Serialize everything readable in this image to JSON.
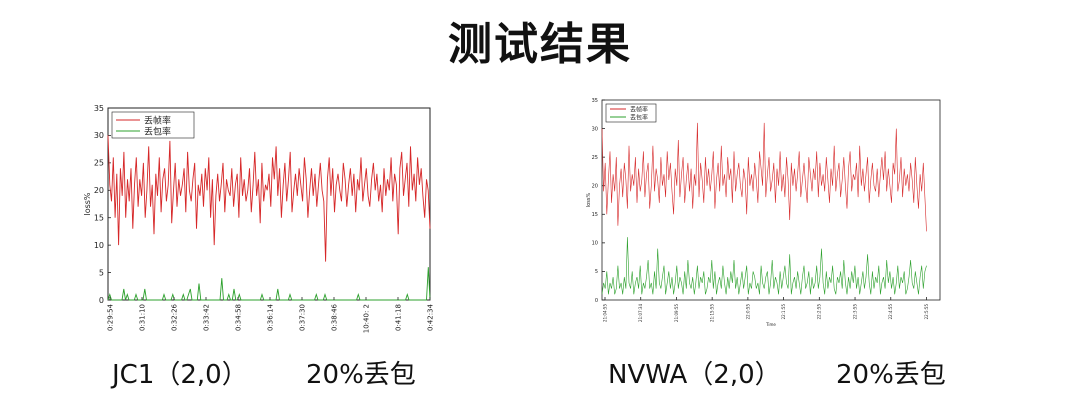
{
  "page": {
    "title": "测试结果"
  },
  "captions": {
    "left_name": "JC1（2,0）",
    "left_loss": "20%丢包",
    "right_name": "NVWA（2,0）",
    "right_loss": "20%丢包"
  },
  "colors": {
    "frame_loss": "#d62728",
    "packet_loss": "#2ca02c"
  },
  "chart_data": [
    {
      "type": "line",
      "title": "",
      "xlabel": "",
      "ylabel": "loss%",
      "ylim": [
        0,
        35
      ],
      "yticks": [
        0,
        5,
        10,
        15,
        20,
        25,
        30,
        35
      ],
      "legend_position": "top-left",
      "x_tick_labels": [
        "0:29:54",
        "0:31:10",
        "0:32:26",
        "0:33:42",
        "0:34:58",
        "0:36:14",
        "0:37:30",
        "0:38:46",
        "10:40: 2",
        "0:41:18",
        "0:42:34"
      ],
      "grid": false,
      "series": [
        {
          "name": "丢帧率",
          "color": "#d62728",
          "values": [
            30,
            21,
            18,
            26,
            15,
            23,
            10,
            24,
            19,
            27,
            15,
            22,
            18,
            24,
            13,
            21,
            26,
            17,
            22,
            19,
            25,
            15,
            20,
            28,
            17,
            21,
            12,
            23,
            19,
            26,
            16,
            22,
            24,
            18,
            21,
            29,
            14,
            20,
            25,
            17,
            22,
            19,
            21,
            24,
            16,
            27,
            20,
            18,
            22,
            25,
            13,
            21,
            19,
            23,
            17,
            24,
            20,
            26,
            15,
            22,
            10,
            19,
            23,
            18,
            21,
            25,
            16,
            22,
            20,
            19,
            24,
            17,
            21,
            23,
            15,
            26,
            19,
            22,
            18,
            20,
            24,
            16,
            21,
            27,
            19,
            22,
            14,
            25,
            18,
            21,
            20,
            23,
            17,
            26,
            22,
            28,
            19,
            24,
            15,
            21,
            25,
            18,
            22,
            27,
            16,
            20,
            23,
            19,
            24,
            21,
            18,
            26,
            22,
            15,
            20,
            24,
            19,
            23,
            17,
            21,
            25,
            20,
            18,
            7,
            22,
            26,
            19,
            24,
            16,
            21,
            23,
            20,
            18,
            25,
            22,
            17,
            21,
            24,
            19,
            23,
            16,
            22,
            20,
            26,
            18,
            21,
            24,
            19,
            17,
            22,
            25,
            20,
            23,
            18,
            21,
            16,
            24,
            19,
            22,
            20,
            26,
            18,
            23,
            21,
            12,
            24,
            27,
            19,
            22,
            25,
            17,
            28,
            20,
            23,
            18,
            26,
            21,
            24,
            19,
            15,
            22,
            20,
            13
          ]
        },
        {
          "name": "丢包率",
          "color": "#2ca02c",
          "values": [
            0,
            1,
            0,
            0,
            0,
            0,
            0,
            0,
            0,
            2,
            0,
            1,
            0,
            0,
            0,
            0,
            1,
            0,
            0,
            0,
            0,
            2,
            0,
            0,
            0,
            0,
            0,
            0,
            0,
            0,
            0,
            0,
            1,
            0,
            0,
            0,
            0,
            1,
            0,
            0,
            0,
            0,
            0,
            1,
            0,
            0,
            1,
            2,
            0,
            0,
            0,
            0,
            3,
            0,
            0,
            0,
            0,
            0,
            0,
            0,
            0,
            0,
            0,
            0,
            0,
            4,
            0,
            0,
            0,
            1,
            0,
            0,
            2,
            0,
            0,
            1,
            0,
            0,
            0,
            0,
            0,
            0,
            0,
            0,
            0,
            0,
            0,
            0,
            1,
            0,
            0,
            0,
            0,
            0,
            0,
            0,
            0,
            2,
            0,
            0,
            0,
            0,
            0,
            0,
            1,
            0,
            0,
            0,
            0,
            0,
            0,
            0,
            0,
            0,
            0,
            0,
            0,
            0,
            0,
            1,
            0,
            0,
            0,
            0,
            1,
            0,
            0,
            0,
            0,
            0,
            0,
            0,
            0,
            0,
            0,
            0,
            0,
            0,
            0,
            0,
            0,
            0,
            0,
            1,
            0,
            0,
            0,
            0,
            0,
            0,
            0,
            0,
            0,
            0,
            0,
            0,
            0,
            0,
            0,
            0,
            0,
            0,
            0,
            0,
            0,
            0,
            0,
            0,
            0,
            0,
            0,
            1,
            0,
            0,
            0,
            0,
            0,
            0,
            0,
            0,
            0,
            0,
            0,
            6,
            0
          ]
        }
      ]
    },
    {
      "type": "line",
      "title": "",
      "xlabel": "Time",
      "ylabel": "loss%",
      "ylim": [
        0,
        35
      ],
      "yticks": [
        0,
        5,
        10,
        15,
        20,
        25,
        30,
        35
      ],
      "legend_position": "top-left",
      "x_tick_labels": [
        "21:04:55",
        "21:07:34",
        "21:09:55",
        "21:15:55",
        "22:0:55",
        "22:1:55",
        "22:2:55",
        "22:3:55",
        "22:4:55",
        "22:5:55"
      ],
      "grid": false,
      "series": [
        {
          "name": "丢帧率",
          "color": "#d62728",
          "values": [
            30,
            19,
            24,
            15,
            21,
            26,
            17,
            22,
            19,
            25,
            13,
            20,
            23,
            18,
            24,
            21,
            16,
            27,
            19,
            22,
            20,
            25,
            17,
            23,
            19,
            21,
            26,
            18,
            22,
            24,
            16,
            20,
            27,
            19,
            23,
            21,
            17,
            25,
            20,
            22,
            18,
            26,
            21,
            24,
            19,
            15,
            23,
            20,
            28,
            18,
            22,
            25,
            17,
            21,
            24,
            19,
            23,
            16,
            22,
            20,
            31,
            18,
            24,
            21,
            17,
            25,
            20,
            23,
            19,
            22,
            26,
            16,
            21,
            24,
            19,
            27,
            20,
            22,
            18,
            25,
            21,
            23,
            17,
            26,
            19,
            22,
            24,
            20,
            18,
            23,
            21,
            15,
            25,
            20,
            22,
            19,
            24,
            21,
            17,
            26,
            23,
            20,
            31,
            18,
            22,
            25,
            19,
            21,
            24,
            17,
            23,
            20,
            26,
            19,
            22,
            18,
            25,
            21,
            14,
            24,
            20,
            23,
            19,
            22,
            26,
            18,
            21,
            24,
            20,
            17,
            25,
            22,
            19,
            23,
            21,
            26,
            18,
            24,
            20,
            22,
            19,
            25,
            21,
            17,
            23,
            20,
            27,
            19,
            22,
            24,
            18,
            21,
            25,
            20,
            16,
            23,
            26,
            19,
            22,
            21,
            24,
            18,
            27,
            20,
            23,
            19,
            22,
            25,
            17,
            21,
            24,
            20,
            19,
            23,
            18,
            22,
            25,
            21,
            26,
            19,
            23,
            20,
            17,
            24,
            22,
            30,
            19,
            21,
            25,
            18,
            23,
            20,
            22,
            19,
            24,
            21,
            17,
            25,
            20,
            16,
            22,
            19,
            24,
            18,
            12
          ]
        },
        {
          "name": "丢包率",
          "color": "#2ca02c",
          "values": [
            1,
            3,
            2,
            5,
            1,
            3,
            2,
            4,
            1,
            2,
            6,
            2,
            3,
            1,
            4,
            2,
            11,
            3,
            2,
            5,
            1,
            3,
            4,
            2,
            6,
            1,
            3,
            2,
            4,
            7,
            2,
            3,
            1,
            5,
            2,
            9,
            3,
            2,
            4,
            6,
            1,
            3,
            5,
            2,
            4,
            1,
            3,
            6,
            2,
            4,
            3,
            1,
            5,
            2,
            7,
            3,
            2,
            4,
            1,
            3,
            6,
            2,
            4,
            3,
            5,
            1,
            2,
            4,
            3,
            7,
            2,
            5,
            1,
            3,
            4,
            2,
            6,
            3,
            1,
            4,
            2,
            5,
            3,
            7,
            2,
            4,
            1,
            3,
            5,
            2,
            4,
            6,
            1,
            3,
            2,
            5,
            4,
            2,
            3,
            1,
            6,
            3,
            2,
            4,
            5,
            1,
            3,
            7,
            2,
            4,
            3,
            1,
            5,
            2,
            4,
            6,
            3,
            2,
            8,
            1,
            3,
            4,
            2,
            5,
            3,
            1,
            4,
            6,
            2,
            3,
            5,
            1,
            4,
            2,
            3,
            6,
            2,
            4,
            9,
            3,
            1,
            5,
            2,
            4,
            3,
            6,
            2,
            1,
            4,
            3,
            5,
            2,
            7,
            3,
            1,
            4,
            2,
            5,
            3,
            6,
            2,
            4,
            1,
            3,
            5,
            2,
            4,
            8,
            3,
            1,
            5,
            2,
            4,
            3,
            6,
            1,
            3,
            4,
            2,
            7,
            3,
            5,
            2,
            4,
            1,
            3,
            6,
            2,
            4,
            3,
            5,
            1,
            2,
            4,
            7,
            3,
            2,
            5,
            3,
            1,
            4,
            6,
            2,
            5,
            6
          ]
        }
      ]
    }
  ]
}
